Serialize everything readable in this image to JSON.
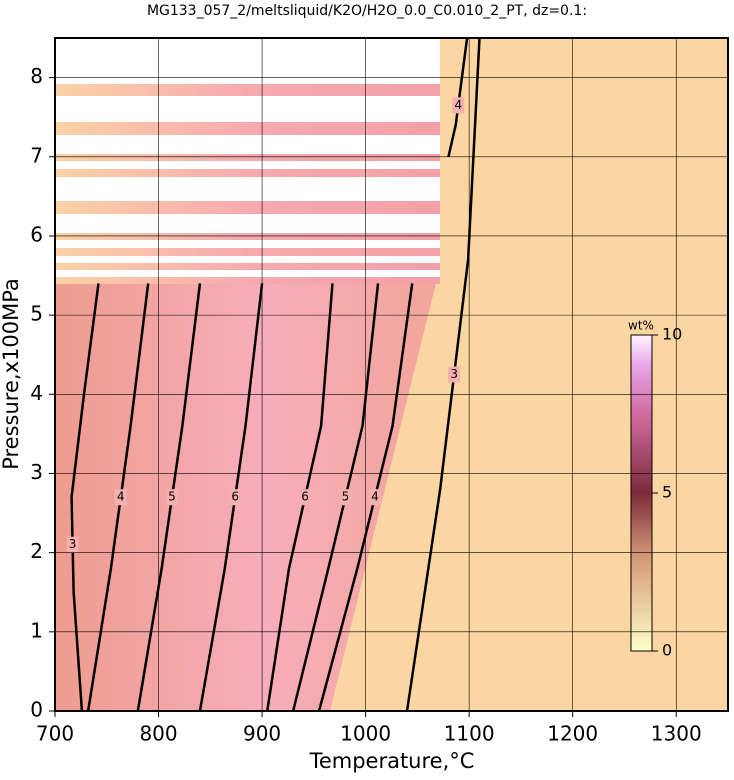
{
  "chart_data": {
    "type": "contour",
    "title": "MG133_057_2/meltsliquid/K2O/H2O_0.0_C0.010_2_PT, dz=0.1:",
    "xlabel": "Temperature,°C",
    "ylabel": "Pressure,x100MPa",
    "xlim": [
      700,
      1350
    ],
    "ylim": [
      0,
      8.5
    ],
    "xticks": [
      700,
      800,
      900,
      1000,
      1100,
      1200,
      1300
    ],
    "yticks": [
      0,
      1,
      2,
      3,
      4,
      5,
      6,
      7,
      8
    ],
    "grid": true,
    "contours": [
      {
        "level": 3,
        "x": [
          726,
          718,
          716,
          728,
          742
        ],
        "y": [
          0,
          1.5,
          2.7,
          4,
          5.4
        ]
      },
      {
        "level": 4,
        "x": [
          732,
          754,
          773,
          790
        ],
        "y": [
          0,
          1.8,
          3.6,
          5.4
        ]
      },
      {
        "level": 5,
        "x": [
          780,
          803,
          823,
          840
        ],
        "y": [
          0,
          1.8,
          3.6,
          5.4
        ]
      },
      {
        "level": 6,
        "x": [
          840,
          864,
          884,
          900
        ],
        "y": [
          0,
          1.8,
          3.6,
          5.4
        ]
      },
      {
        "level": 6,
        "x": [
          905,
          926,
          957,
          968
        ],
        "y": [
          0,
          1.8,
          3.6,
          5.4
        ]
      },
      {
        "level": 5,
        "x": [
          930,
          964,
          997,
          1012
        ],
        "y": [
          0,
          1.8,
          3.6,
          5.4
        ]
      },
      {
        "level": 4,
        "x": [
          955,
          992,
          1026,
          1045
        ],
        "y": [
          0,
          1.8,
          3.6,
          5.4
        ]
      },
      {
        "level": 3,
        "x": [
          1040,
          1072,
          1099,
          1110
        ],
        "y": [
          0,
          2.8,
          5.7,
          8.5
        ]
      },
      {
        "level": 4,
        "x": [
          1080,
          1087,
          1092,
          1098
        ],
        "y": [
          7.0,
          7.4,
          7.9,
          8.5
        ]
      }
    ],
    "colorbar": {
      "label": "wt%",
      "lim": [
        0,
        10
      ],
      "ticks": [
        0,
        5,
        10
      ]
    }
  }
}
